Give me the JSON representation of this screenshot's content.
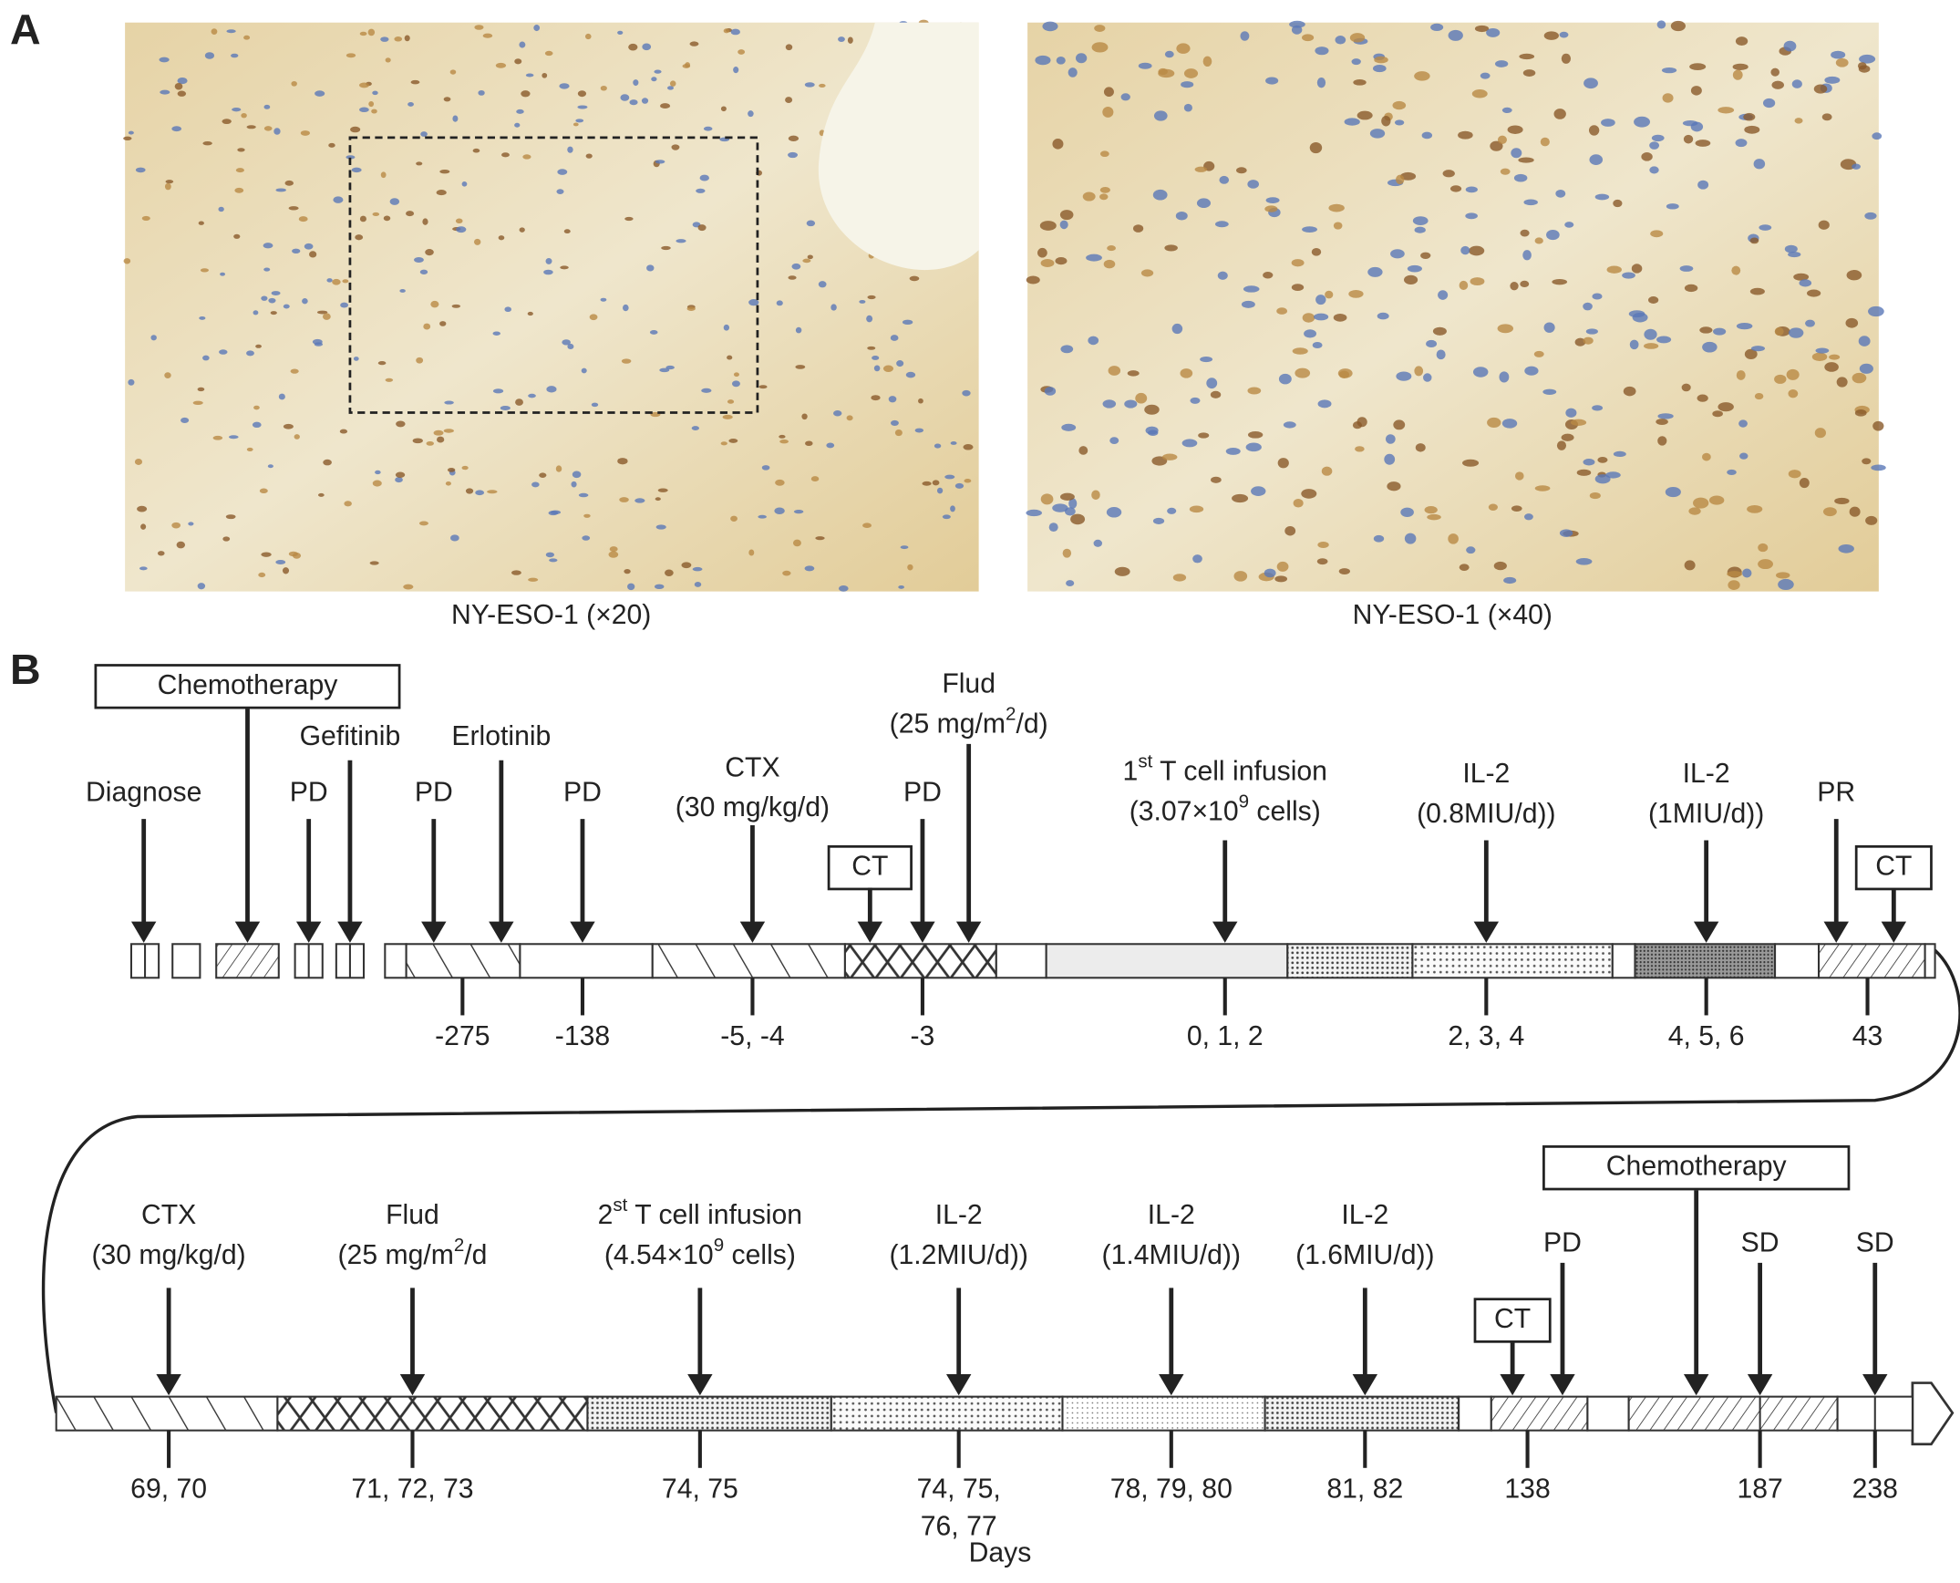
{
  "panel_a": {
    "label": "A",
    "images": [
      {
        "caption": "NY-ESO-1 (×20)"
      },
      {
        "caption": "NY-ESO-1 (×40)"
      }
    ]
  },
  "panel_b": {
    "label": "B",
    "row1": {
      "events": [
        {
          "lines": [
            [
              "Diagnose"
            ]
          ]
        },
        {
          "lines": [
            [
              "Chemotherapy"
            ]
          ],
          "boxed": true
        },
        {
          "lines": [
            [
              "PD"
            ]
          ]
        },
        {
          "lines": [
            [
              "Gefitinib"
            ]
          ]
        },
        {
          "lines": [
            [
              "PD"
            ]
          ]
        },
        {
          "lines": [
            [
              "Erlotinib"
            ]
          ]
        },
        {
          "lines": [
            [
              "PD"
            ]
          ]
        },
        {
          "lines": [
            [
              "CTX"
            ],
            [
              "(30 mg/kg/d)"
            ]
          ]
        },
        {
          "lines": [
            [
              "CT"
            ]
          ],
          "boxed": true
        },
        {
          "lines": [
            [
              "PD"
            ]
          ]
        },
        {
          "lines": [
            [
              "Flud"
            ],
            [
              "(25 mg/m",
              "2",
              "/d)"
            ]
          ]
        },
        {
          "lines": [
            [
              "1",
              "st",
              " T cell infusion"
            ],
            [
              "(3.07×10",
              "9",
              " cells)"
            ]
          ]
        },
        {
          "lines": [
            [
              "IL-2"
            ],
            [
              "(0.8MIU/d))"
            ]
          ]
        },
        {
          "lines": [
            [
              "IL-2"
            ],
            [
              "(1MIU/d))"
            ]
          ]
        },
        {
          "lines": [
            [
              "PR"
            ]
          ]
        },
        {
          "lines": [
            [
              "CT"
            ]
          ],
          "boxed": true
        }
      ],
      "days": [
        [
          "-275"
        ],
        [
          "-138"
        ],
        [
          "-5, -4"
        ],
        [
          "-3"
        ],
        [
          "0, 1, 2"
        ],
        [
          "2, 3, 4"
        ],
        [
          "4, 5, 6"
        ],
        [
          "43"
        ]
      ]
    },
    "row2": {
      "events": [
        {
          "lines": [
            [
              "CTX"
            ],
            [
              "(30 mg/kg/d)"
            ]
          ]
        },
        {
          "lines": [
            [
              "Flud"
            ],
            [
              "(25 mg/m",
              "2",
              "/d"
            ]
          ]
        },
        {
          "lines": [
            [
              "2",
              "st",
              " T cell infusion"
            ],
            [
              "(4.54×10",
              "9",
              " cells)"
            ]
          ]
        },
        {
          "lines": [
            [
              "IL-2"
            ],
            [
              "(1.2MIU/d))"
            ]
          ]
        },
        {
          "lines": [
            [
              "IL-2"
            ],
            [
              "(1.4MIU/d))"
            ]
          ]
        },
        {
          "lines": [
            [
              "IL-2"
            ],
            [
              "(1.6MIU/d))"
            ]
          ]
        },
        {
          "lines": [
            [
              "CT"
            ]
          ],
          "boxed": true
        },
        {
          "lines": [
            [
              "PD"
            ]
          ]
        },
        {
          "lines": [
            [
              "Chemotherapy"
            ]
          ],
          "boxed": true
        },
        {
          "lines": [
            [
              "SD"
            ]
          ]
        },
        {
          "lines": [
            [
              "SD"
            ]
          ]
        }
      ],
      "days": [
        [
          "69, 70"
        ],
        [
          "71, 72, 73"
        ],
        [
          "74, 75"
        ],
        [
          "74, 75,",
          "76, 77"
        ],
        [
          "78, 79, 80"
        ],
        [
          "81, 82"
        ],
        [
          "138"
        ],
        [
          "187"
        ],
        [
          "238"
        ]
      ]
    },
    "axis_label": "Days"
  }
}
